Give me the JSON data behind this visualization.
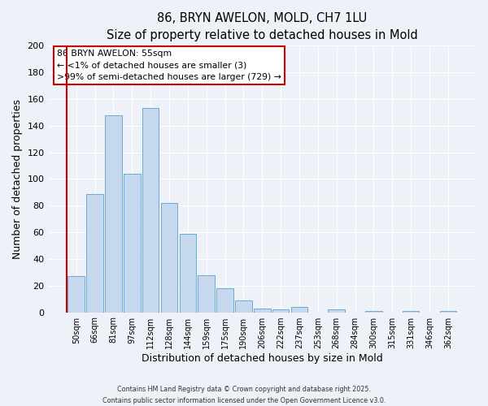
{
  "title": "86, BRYN AWELON, MOLD, CH7 1LU",
  "subtitle": "Size of property relative to detached houses in Mold",
  "xlabel": "Distribution of detached houses by size in Mold",
  "ylabel": "Number of detached properties",
  "bar_labels": [
    "50sqm",
    "66sqm",
    "81sqm",
    "97sqm",
    "112sqm",
    "128sqm",
    "144sqm",
    "159sqm",
    "175sqm",
    "190sqm",
    "206sqm",
    "222sqm",
    "237sqm",
    "253sqm",
    "268sqm",
    "284sqm",
    "300sqm",
    "315sqm",
    "331sqm",
    "346sqm",
    "362sqm"
  ],
  "bar_values": [
    27,
    89,
    148,
    104,
    153,
    82,
    59,
    28,
    18,
    9,
    3,
    2,
    4,
    0,
    2,
    0,
    1,
    0,
    1,
    0,
    1
  ],
  "bar_color": "#c5d8ee",
  "bar_edge_color": "#6aaad4",
  "annotation_line1": "86 BRYN AWELON: 55sqm",
  "annotation_line2": "← <1% of detached houses are smaller (3)",
  "annotation_line3": ">99% of semi-detached houses are larger (729) →",
  "marker_line_color": "#cc0000",
  "ylim": [
    0,
    200
  ],
  "yticks": [
    0,
    20,
    40,
    60,
    80,
    100,
    120,
    140,
    160,
    180,
    200
  ],
  "footer_line1": "Contains HM Land Registry data © Crown copyright and database right 2025.",
  "footer_line2": "Contains public sector information licensed under the Open Government Licence v3.0.",
  "bg_color": "#eef2f8",
  "grid_color": "#ffffff"
}
